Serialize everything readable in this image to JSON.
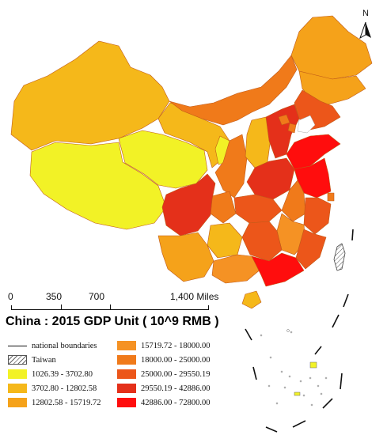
{
  "compass": {
    "label": "N"
  },
  "scale_bar": {
    "labels": [
      "0",
      "350",
      "700",
      "1,400 Miles"
    ]
  },
  "title": "China : 2015 GDP Unit ( 10^9 RMB )",
  "legend": {
    "boundary_label": "national boundaries",
    "taiwan_label": "Taiwan",
    "classes": [
      {
        "label": "1026.39 - 3702.80",
        "color": "#f2f226"
      },
      {
        "label": "3702.80 - 12802.58",
        "color": "#f5b81a"
      },
      {
        "label": "12802.58 - 15719.72",
        "color": "#f5a21a"
      },
      {
        "label": "15719.72 - 18000.00",
        "color": "#f59224"
      },
      {
        "label": "18000.00 - 25000.00",
        "color": "#f07a1a"
      },
      {
        "label": "25000.00 - 29550.19",
        "color": "#ec561a"
      },
      {
        "label": "29550.19 - 42886.00",
        "color": "#e4301a"
      },
      {
        "label": "42886.00 - 72800.00",
        "color": "#ff0d0d"
      }
    ]
  }
}
